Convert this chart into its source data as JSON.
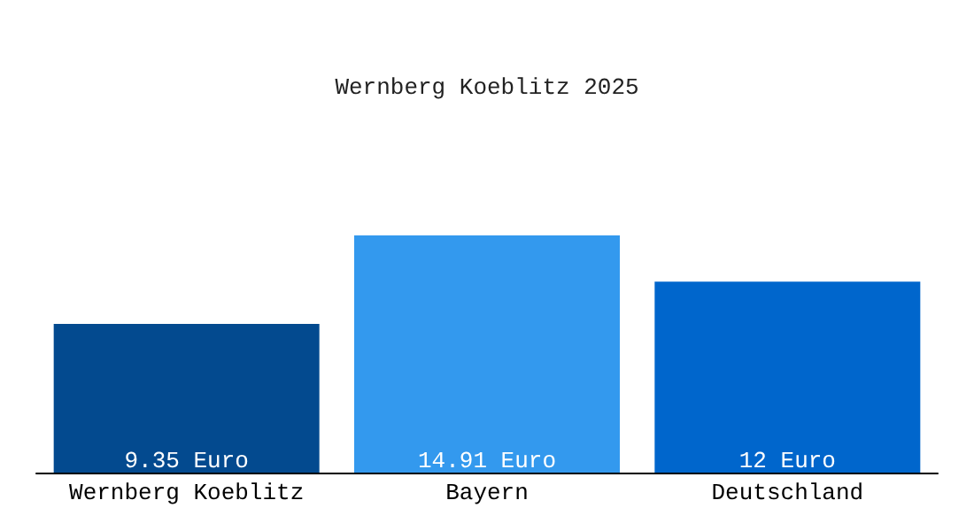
{
  "chart_data": {
    "type": "bar",
    "title": "Wernberg Koeblitz 2025",
    "categories": [
      "Wernberg Koeblitz",
      "Bayern",
      "Deutschland"
    ],
    "values": [
      9.35,
      14.91,
      12
    ],
    "colors": [
      "#034a8f",
      "#3399ee",
      "#0066cc"
    ],
    "value_labels": [
      "9.35 Euro",
      "14.91 Euro",
      "12 Euro"
    ],
    "grid": false
  }
}
